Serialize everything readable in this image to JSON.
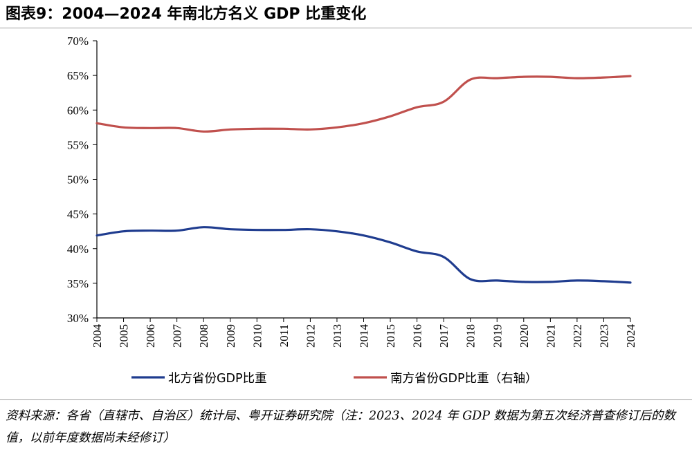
{
  "title": "图表9：2004—2024 年南北方名义 GDP 比重变化",
  "source": "资料来源：各省（直辖市、自治区）统计局、粤开证券研究院（注：2023、2024 年 GDP 数据为第五次经济普查修订后的数值，以前年度数据尚未经修订）",
  "colors": {
    "north": "#1f3c8f",
    "south": "#c0504d",
    "axis": "#000000"
  },
  "chart_data": {
    "type": "line",
    "title": "",
    "xlabel": "",
    "ylabel": "",
    "ylim": [
      30,
      70
    ],
    "y_ticks": [
      "30%",
      "35%",
      "40%",
      "45%",
      "50%",
      "55%",
      "60%",
      "65%",
      "70%"
    ],
    "x": [
      "2004",
      "2005",
      "2006",
      "2007",
      "2008",
      "2009",
      "2010",
      "2011",
      "2012",
      "2013",
      "2014",
      "2015",
      "2016",
      "2017",
      "2018",
      "2019",
      "2020",
      "2021",
      "2022",
      "2023",
      "2024"
    ],
    "series": [
      {
        "name": "北方省份GDP比重",
        "values": [
          41.9,
          42.5,
          42.6,
          42.6,
          43.1,
          42.8,
          42.7,
          42.7,
          42.8,
          42.5,
          41.9,
          40.9,
          39.6,
          38.8,
          35.6,
          35.4,
          35.2,
          35.2,
          35.4,
          35.3,
          35.1
        ]
      },
      {
        "name": "南方省份GDP比重（右轴）",
        "values": [
          58.1,
          57.5,
          57.4,
          57.4,
          56.9,
          57.2,
          57.3,
          57.3,
          57.2,
          57.5,
          58.1,
          59.1,
          60.4,
          61.2,
          64.4,
          64.6,
          64.8,
          64.8,
          64.6,
          64.7,
          64.9
        ]
      }
    ],
    "legend_position": "bottom",
    "grid": false
  }
}
